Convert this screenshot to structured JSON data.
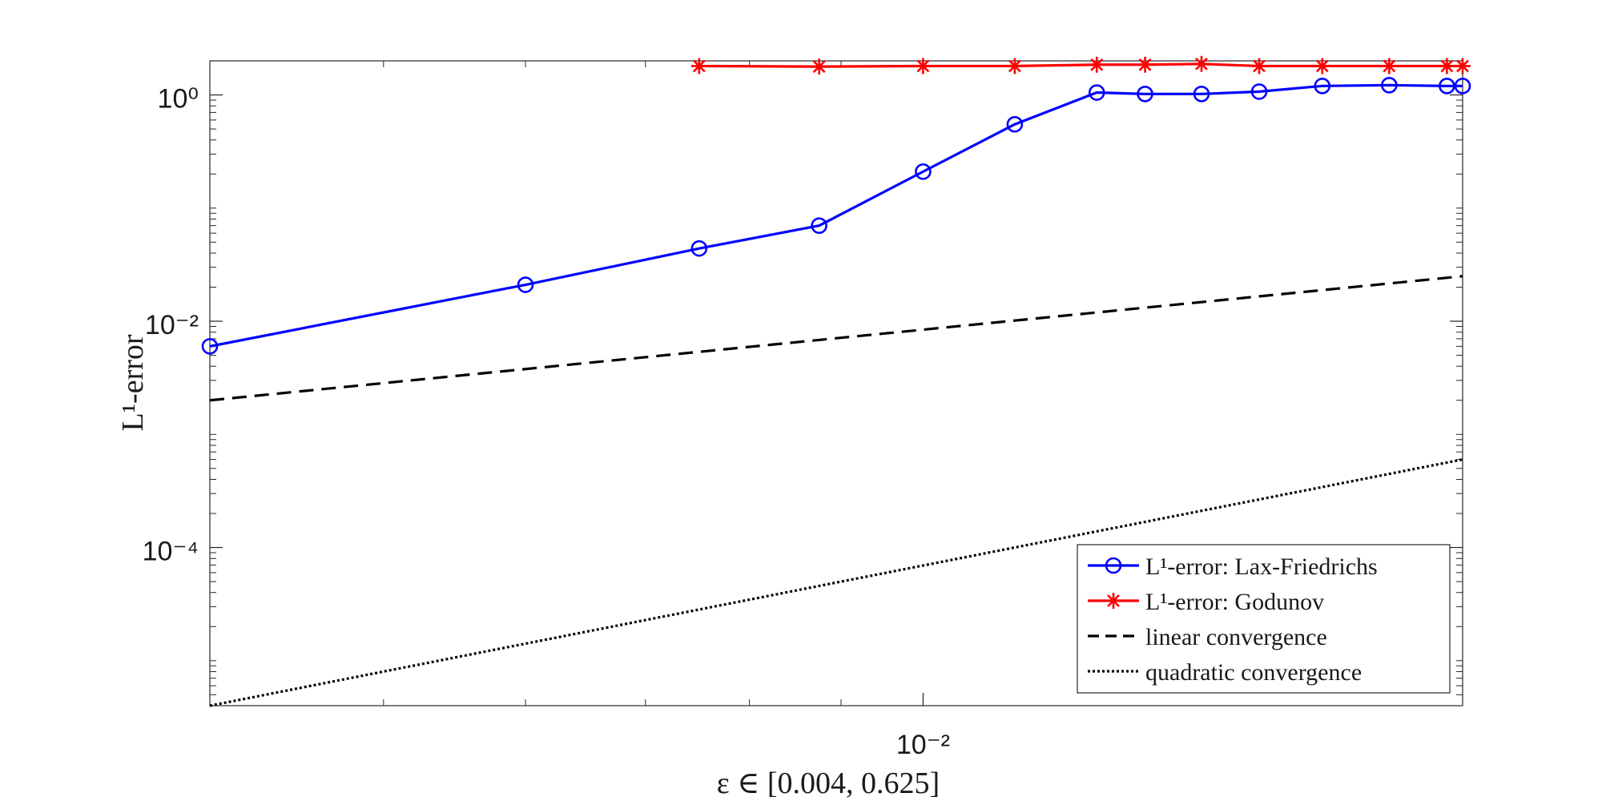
{
  "chart_data": {
    "type": "line",
    "xscale": "log",
    "yscale": "log",
    "xlim": [
      0.004,
      0.02
    ],
    "ylim": [
      4e-06,
      2
    ],
    "xlabel": "ε ∈ [0.004, 0.625]",
    "ylabel": "L¹-error",
    "x_ticks": [
      {
        "value": 0.01,
        "label": "10⁻²"
      }
    ],
    "y_ticks": [
      {
        "value": 1,
        "label": "10⁰"
      },
      {
        "value": 0.01,
        "label": "10⁻²"
      },
      {
        "value": 0.0001,
        "label": "10⁻⁴"
      }
    ],
    "grid": false,
    "legend_position": "bottom-right",
    "series": [
      {
        "name": "L¹-error: Lax-Friedrichs",
        "color": "#0000ff",
        "marker": "circle",
        "line": "solid",
        "x": [
          0.004,
          0.006,
          0.0075,
          0.00875,
          0.01,
          0.01125,
          0.0125,
          0.0133,
          0.0143,
          0.0154,
          0.0167,
          0.0182,
          0.0196,
          0.02
        ],
        "y": [
          0.006,
          0.021,
          0.044,
          0.07,
          0.21,
          0.55,
          1.05,
          1.02,
          1.02,
          1.07,
          1.2,
          1.22,
          1.2,
          1.2
        ]
      },
      {
        "name": "L¹-error: Godunov",
        "color": "#ff0000",
        "marker": "asterisk",
        "line": "solid",
        "x": [
          0.0075,
          0.00875,
          0.01,
          0.01125,
          0.0125,
          0.0133,
          0.0143,
          0.0154,
          0.0167,
          0.0182,
          0.0196,
          0.02
        ],
        "y": [
          1.8,
          1.78,
          1.8,
          1.8,
          1.85,
          1.85,
          1.88,
          1.8,
          1.8,
          1.8,
          1.8,
          1.8
        ]
      },
      {
        "name": "linear convergence",
        "color": "#000000",
        "marker": "none",
        "line": "dashed",
        "x": [
          0.004,
          0.02
        ],
        "y": [
          0.002,
          0.025
        ]
      },
      {
        "name": "quadratic convergence",
        "color": "#000000",
        "marker": "none",
        "line": "dotted",
        "x": [
          0.004,
          0.02
        ],
        "y": [
          4e-06,
          0.0006
        ]
      }
    ]
  }
}
